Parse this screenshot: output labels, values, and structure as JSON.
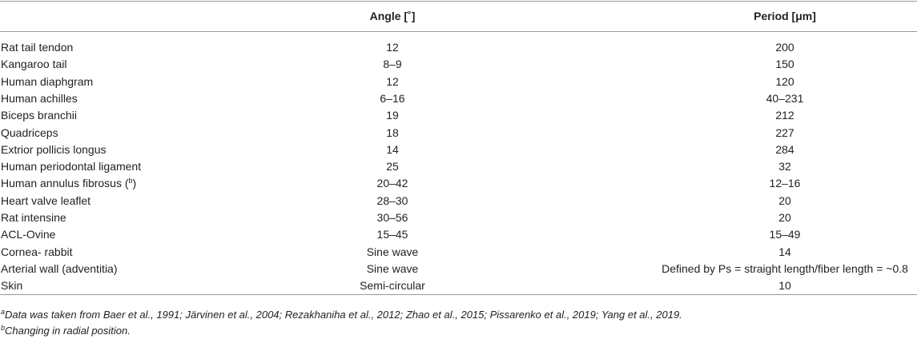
{
  "table": {
    "header": [
      "",
      "Angle [˚]",
      "Period [μm]"
    ],
    "rows": [
      [
        "Rat tail tendon",
        "12",
        "200"
      ],
      [
        "Kangaroo tail",
        "8–9",
        "150"
      ],
      [
        "Human diaphgram",
        "12",
        "120"
      ],
      [
        "Human achilles",
        "6–16",
        "40–231"
      ],
      [
        "Biceps branchii",
        "19",
        "212"
      ],
      [
        "Quadriceps",
        "18",
        "227"
      ],
      [
        "Extrior pollicis longus",
        "14",
        "284"
      ],
      [
        "Human periodontal ligament",
        "25",
        "32"
      ],
      [
        {
          "text": "Human annulus fibrosus (",
          "sup": "b",
          "tail": ")"
        },
        "20–42",
        "12–16"
      ],
      [
        "Heart valve leaflet",
        "28–30",
        "20"
      ],
      [
        "Rat intensine",
        "30–56",
        "20"
      ],
      [
        "ACL-Ovine",
        "15–45",
        "15–49"
      ],
      [
        "Cornea- rabbit",
        "Sine wave",
        "14"
      ],
      [
        "Arterial wall (adventitia)",
        "Sine wave",
        "Defined by Ps = straight length/fiber length = ~0.8"
      ],
      [
        "Skin",
        "Semi-circular",
        "10"
      ]
    ]
  },
  "footnotes": [
    {
      "mark": "a",
      "text": "Data was taken from Baer et al., 1991; Järvinen et al., 2004; Rezakhaniha et al., 2012; Zhao et al., 2015; Pissarenko et al., 2019; Yang et al., 2019."
    },
    {
      "mark": "b",
      "text": "Changing in radial position."
    }
  ]
}
